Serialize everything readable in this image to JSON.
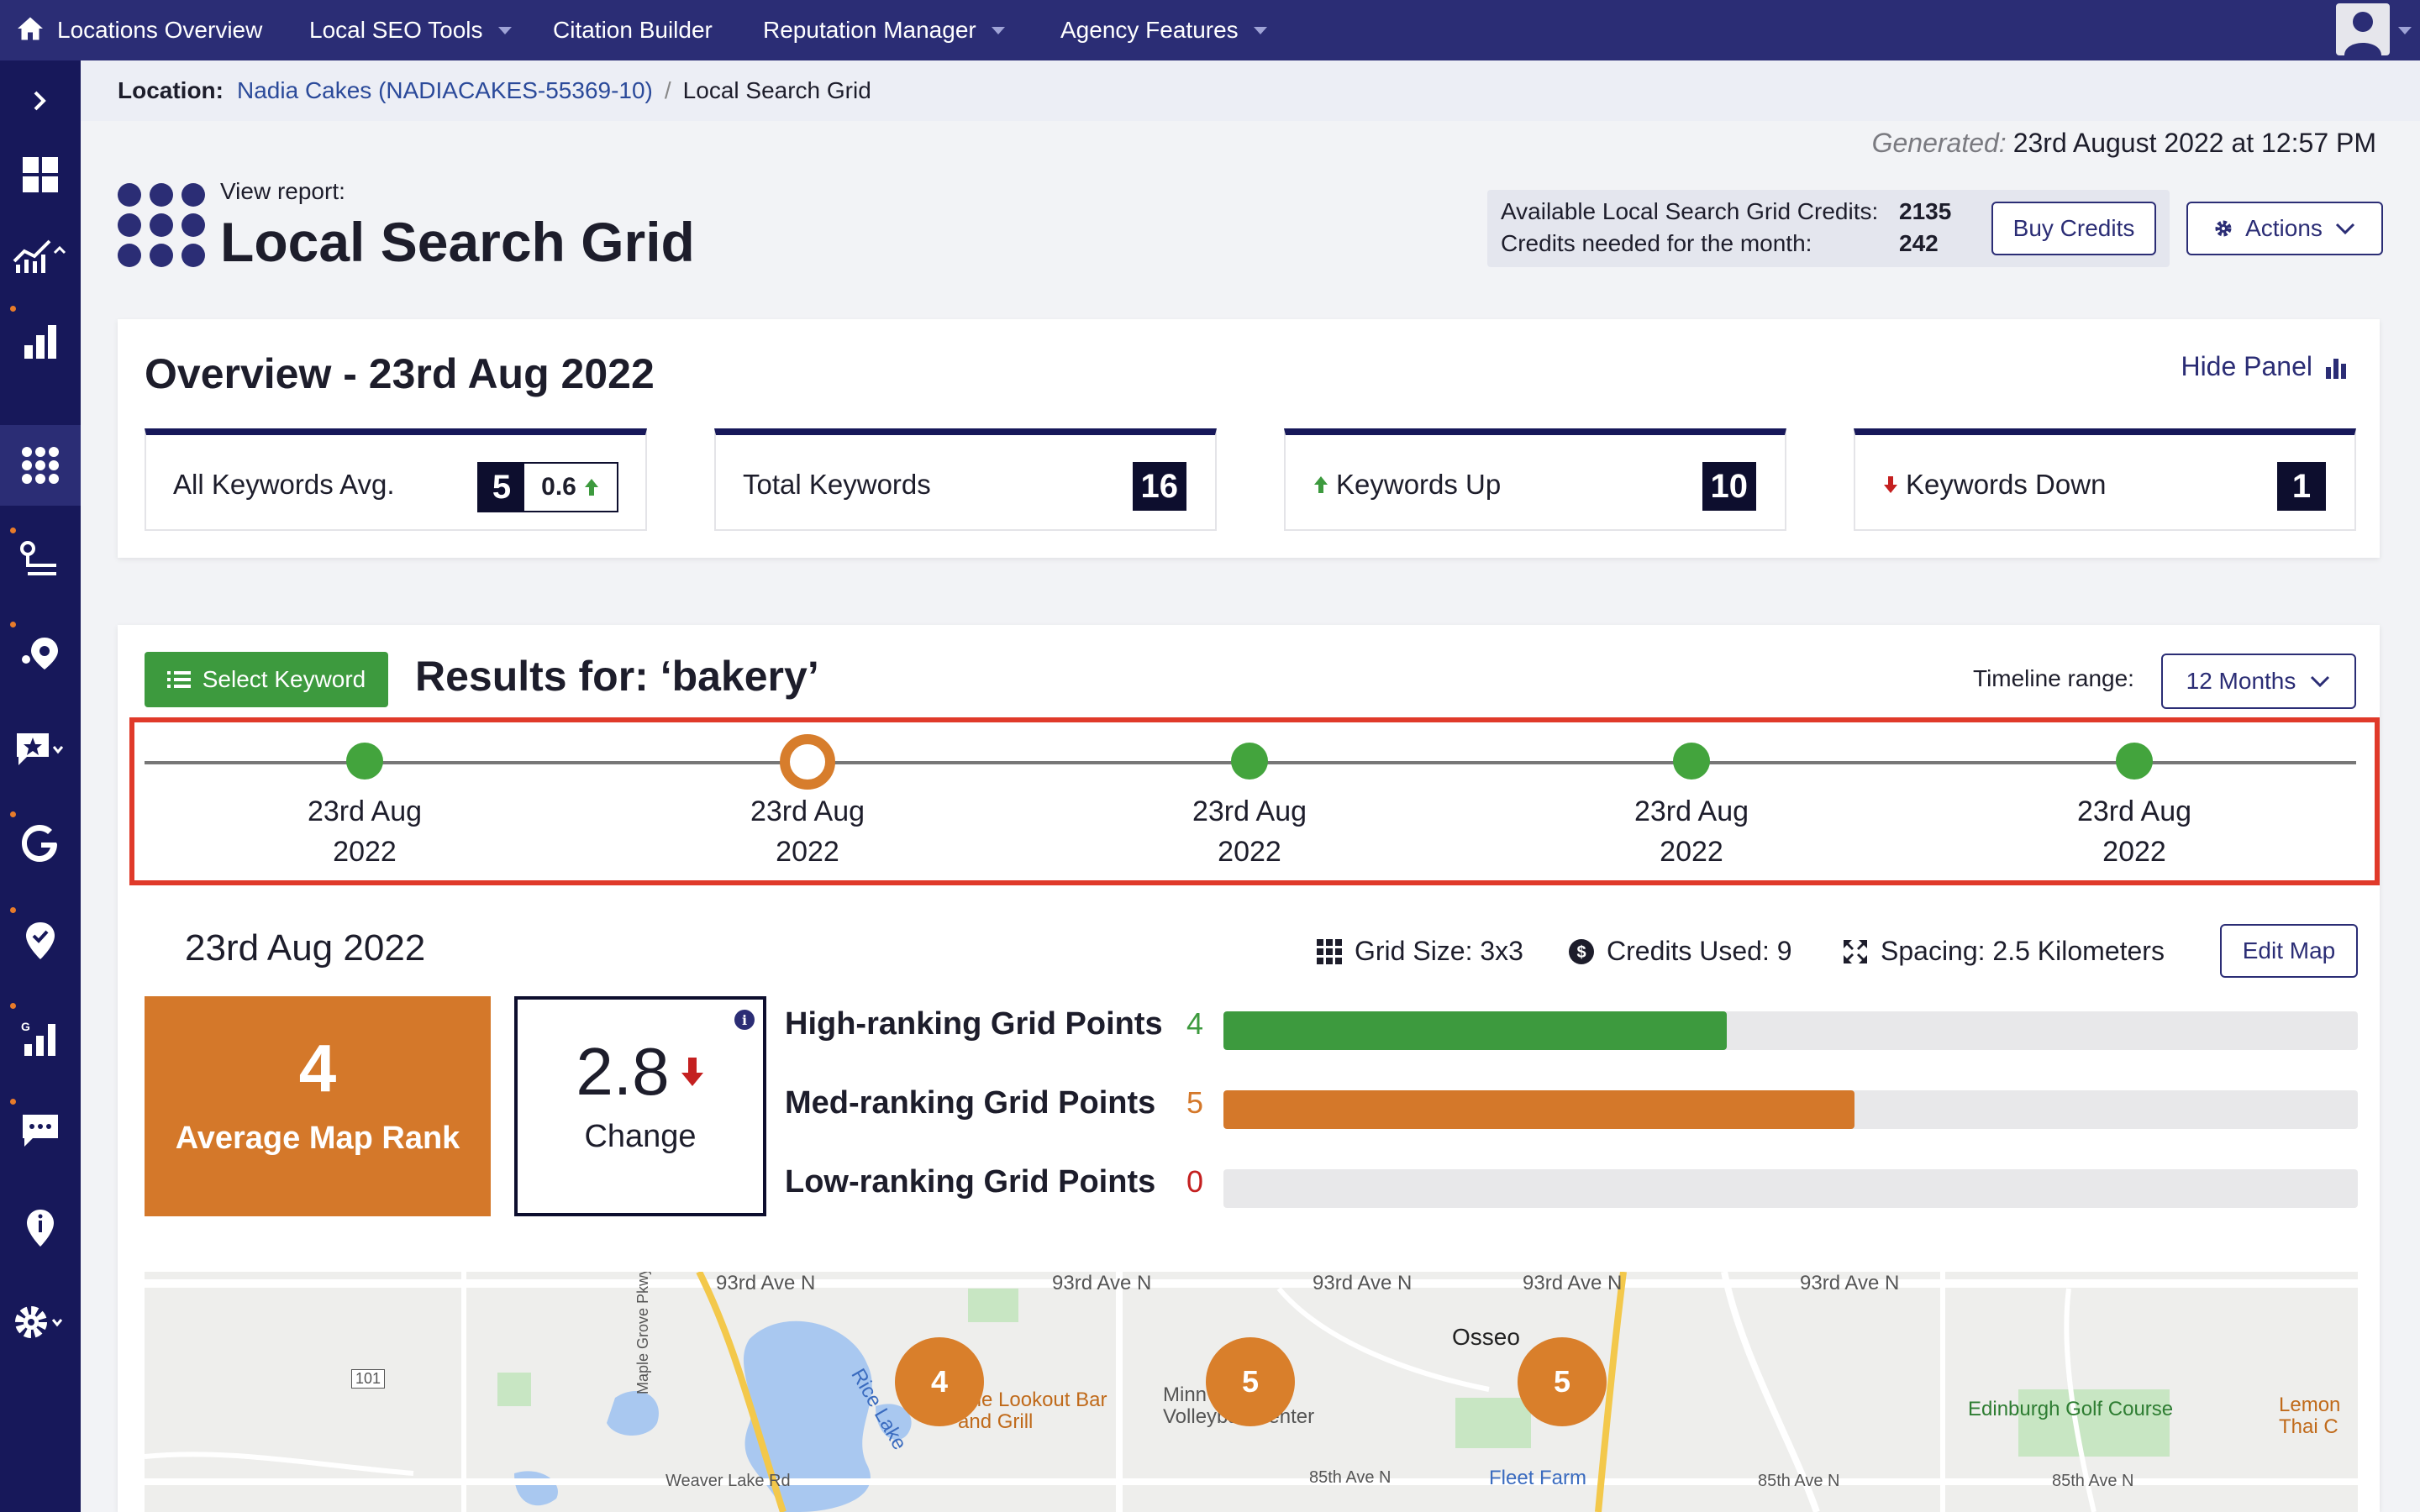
{
  "topnav": {
    "items": [
      "Locations Overview",
      "Local SEO Tools",
      "Citation Builder",
      "Reputation Manager",
      "Agency Features"
    ]
  },
  "breadcrumb": {
    "prefix": "Location:",
    "location": "Nadia Cakes (NADIACAKES-55369-10)",
    "separator": "/",
    "current": "Local Search Grid"
  },
  "generated": {
    "label": "Generated:",
    "value": "23rd August 2022 at 12:57 PM"
  },
  "report": {
    "view_label": "View report:",
    "title": "Local Search Grid"
  },
  "credits": {
    "available_label": "Available Local Search Grid Credits:",
    "available_value": "2135",
    "needed_label": "Credits needed for the month:",
    "needed_value": "242",
    "buy_label": "Buy Credits",
    "actions_label": "Actions"
  },
  "overview": {
    "title": "Overview - 23rd Aug 2022",
    "hide_label": "Hide Panel",
    "stats": [
      {
        "label": "All Keywords Avg.",
        "value": "5",
        "secondary": "0.6"
      },
      {
        "label": "Total Keywords",
        "value": "16"
      },
      {
        "label": "Keywords Up",
        "value": "10"
      },
      {
        "label": "Keywords Down",
        "value": "1"
      }
    ]
  },
  "results": {
    "select_label": "Select Keyword",
    "title": "Results for: ‘bakery’",
    "timeline_label": "Timeline range:",
    "timeline_value": "12 Months",
    "timeline": [
      {
        "line1": "23rd Aug",
        "line2": "2022",
        "selected": false
      },
      {
        "line1": "23rd Aug",
        "line2": "2022",
        "selected": true
      },
      {
        "line1": "23rd Aug",
        "line2": "2022",
        "selected": false
      },
      {
        "line1": "23rd Aug",
        "line2": "2022",
        "selected": false
      },
      {
        "line1": "23rd Aug",
        "line2": "2022",
        "selected": false
      }
    ]
  },
  "detail": {
    "date": "23rd Aug 2022",
    "grid_size": "Grid Size: 3x3",
    "credits_used": "Credits Used: 9",
    "spacing": "Spacing: 2.5 Kilometers",
    "edit_label": "Edit Map",
    "avg_rank_value": "4",
    "avg_rank_label": "Average Map Rank",
    "change_value": "2.8",
    "change_label": "Change",
    "bars": [
      {
        "label": "High-ranking Grid Points",
        "count": "4",
        "fraction": 0.444,
        "color": "#3d9a3e"
      },
      {
        "label": "Med-ranking Grid Points",
        "count": "5",
        "fraction": 0.556,
        "color": "#d4782a"
      },
      {
        "label": "Low-ranking Grid Points",
        "count": "0",
        "fraction": 0,
        "color": "#c42020"
      }
    ]
  },
  "map": {
    "pins": [
      "4",
      "5",
      "5"
    ],
    "labels": [
      "93rd Ave N",
      "93rd Ave N",
      "93rd Ave N",
      "93rd Ave N",
      "93rd Ave N",
      "Osseo",
      "Rice Lake",
      "The Lookout Bar and Grill",
      "Minn Select Volleyball Center",
      "Edinburgh Golf Course",
      "Lemon Thai C",
      "Fleet Farm",
      "85th Ave N",
      "85th Ave N",
      "85th Ave N",
      "Weaver Lake Rd",
      "Maple Grove Pkwy",
      "101"
    ]
  },
  "colors": {
    "brand": "#2b2d75",
    "green": "#3d9a3e",
    "orange": "#d4782a",
    "red": "#e03a2a"
  }
}
